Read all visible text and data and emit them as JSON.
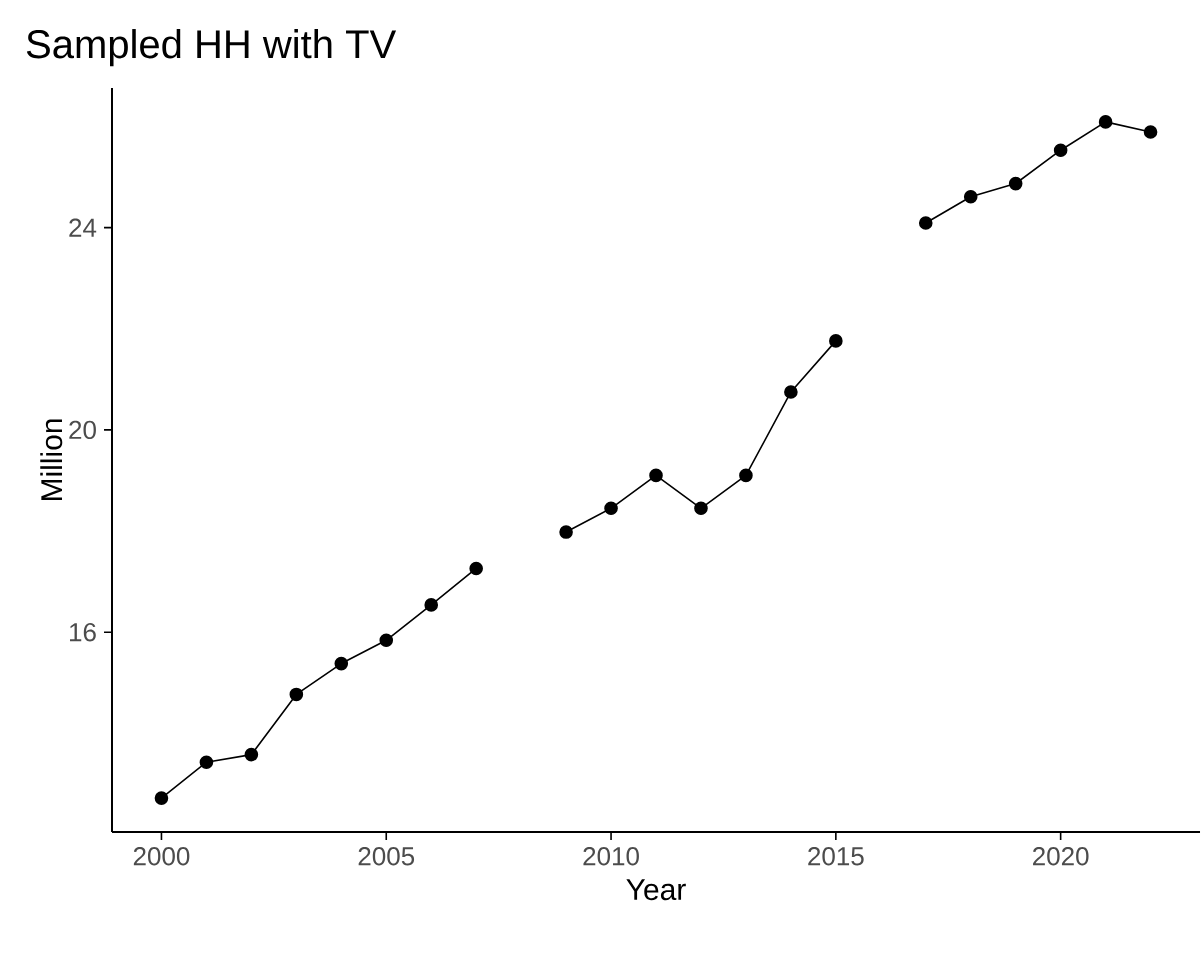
{
  "chart_data": {
    "type": "line",
    "title": "Sampled HH with TV",
    "xlabel": "Year",
    "ylabel": "Million",
    "x": [
      2000,
      2001,
      2002,
      2003,
      2004,
      2005,
      2006,
      2007,
      2008,
      2009,
      2010,
      2011,
      2012,
      2013,
      2014,
      2015,
      2016,
      2017,
      2018,
      2019,
      2020,
      2021,
      2022
    ],
    "series": [
      {
        "color": "#000000",
        "values": [
          12.72,
          13.43,
          13.58,
          14.77,
          15.38,
          15.84,
          16.54,
          17.26,
          null,
          17.98,
          18.45,
          19.1,
          18.45,
          19.1,
          20.75,
          21.76,
          null,
          24.09,
          24.61,
          24.87,
          25.53,
          26.09,
          25.89
        ]
      }
    ],
    "xlim": [
      1998.9,
      2023.1
    ],
    "ylim": [
      12.05,
      26.76
    ],
    "xticks": [
      2000,
      2005,
      2010,
      2015,
      2020
    ],
    "yticks": [
      16,
      20,
      24
    ],
    "grid": false,
    "marker": "circle",
    "line_style": "solid"
  }
}
